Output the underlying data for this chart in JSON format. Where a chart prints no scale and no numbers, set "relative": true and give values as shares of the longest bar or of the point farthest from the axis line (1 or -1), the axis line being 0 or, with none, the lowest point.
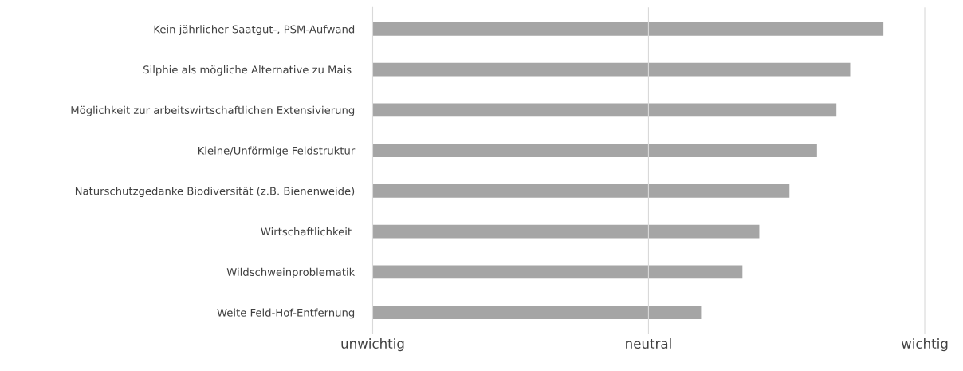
{
  "chart_data": {
    "type": "bar",
    "orientation": "horizontal",
    "relative": true,
    "categories": [
      "Kein jährlicher Saatgut-, PSM-Aufwand",
      "Silphie als mögliche Alternative zu Mais ",
      "Möglichkeit zur arbeitswirtschaftlichen Extensivierung",
      "Kleine/Unförmige Feldstruktur",
      "Naturschutzgedanke Biodiversität (z.B. Bienenweide)",
      "Wirtschaftlichkeit ",
      "Wildschweinproblematik",
      "Weite Feld-Hof-Entfernung"
    ],
    "values": [
      1,
      0.935,
      0.908,
      0.87,
      0.816,
      0.757,
      0.724,
      0.643
    ],
    "color": "#a5a5a5",
    "annotations": [
      "unwichtig"
    ],
    "ref_lines": [
      {
        "axis": "x",
        "value": 0.54,
        "label": "neutral",
        "color": "#d9d9d9"
      },
      {
        "axis": "x",
        "value": 1.081,
        "label": "wichtig",
        "color": "#d9d9d9"
      }
    ]
  }
}
